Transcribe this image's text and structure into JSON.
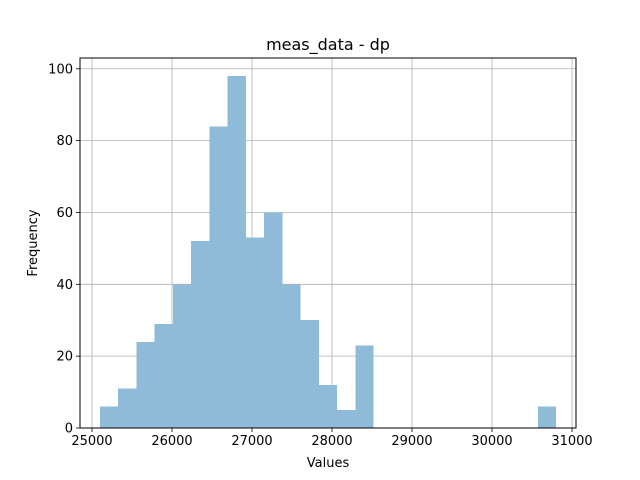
{
  "chart_data": {
    "type": "bar",
    "title": "meas_data - dp",
    "xlabel": "Values",
    "ylabel": "Frequency",
    "bin_edges": [
      25100,
      25328,
      25556,
      25784,
      26012,
      26240,
      26468,
      26696,
      26924,
      27152,
      27380,
      27608,
      27836,
      28064,
      28292,
      28520,
      28748,
      28976,
      29204,
      29432,
      29660,
      29888,
      30116,
      30344,
      30572,
      30800
    ],
    "counts": [
      6,
      11,
      24,
      29,
      40,
      52,
      84,
      98,
      53,
      60,
      40,
      30,
      12,
      5,
      23,
      0,
      0,
      0,
      0,
      0,
      0,
      0,
      0,
      0,
      6
    ],
    "xlim": [
      24850,
      31050
    ],
    "ylim": [
      0,
      103
    ],
    "x_ticks": [
      25000,
      26000,
      27000,
      28000,
      29000,
      30000,
      31000
    ],
    "y_ticks": [
      0,
      20,
      40,
      60,
      80,
      100
    ],
    "grid": true,
    "bar_color": "#8fbbd9"
  }
}
